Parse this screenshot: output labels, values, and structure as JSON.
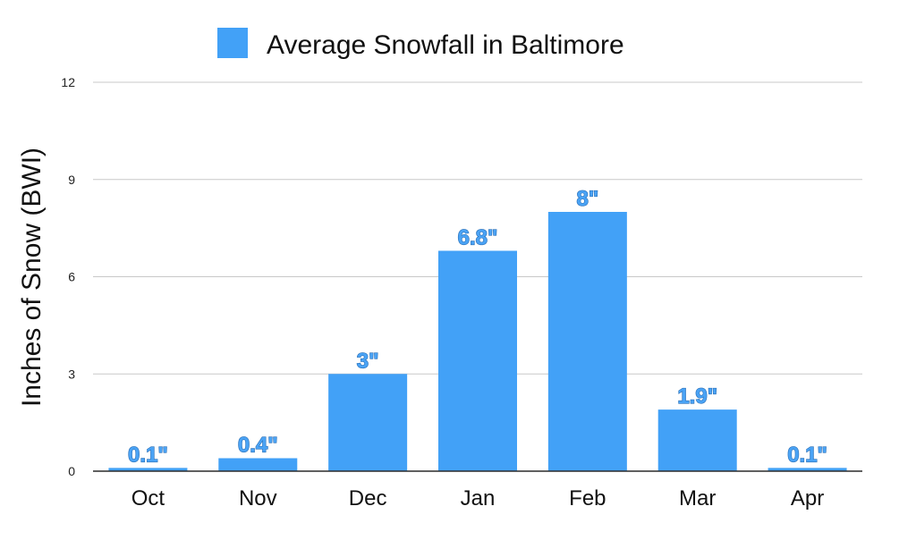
{
  "chart_data": {
    "type": "bar",
    "categories": [
      "Oct",
      "Nov",
      "Dec",
      "Jan",
      "Feb",
      "Mar",
      "Apr"
    ],
    "series": [
      {
        "name": "Average Snowfall in Baltimore",
        "values": [
          0.1,
          0.4,
          3,
          6.8,
          8,
          1.9,
          0.1
        ],
        "labels": [
          "0.1\"",
          "0.4\"",
          "3\"",
          "6.8\"",
          "8\"",
          "1.9\"",
          "0.1\""
        ]
      }
    ],
    "ylabel": "Inches of Snow (BWI)",
    "xlabel": "",
    "ylim": [
      0,
      12
    ],
    "yticks": [
      0,
      3,
      6,
      9,
      12
    ],
    "grid": true,
    "legend_position": "top-center",
    "colors": {
      "bar": "#42a1f7",
      "label_fill": "#4aa3f5",
      "label_stroke": "#2a6fb7",
      "grid": "#c8c8c8",
      "axis": "#2b2b2b"
    }
  }
}
